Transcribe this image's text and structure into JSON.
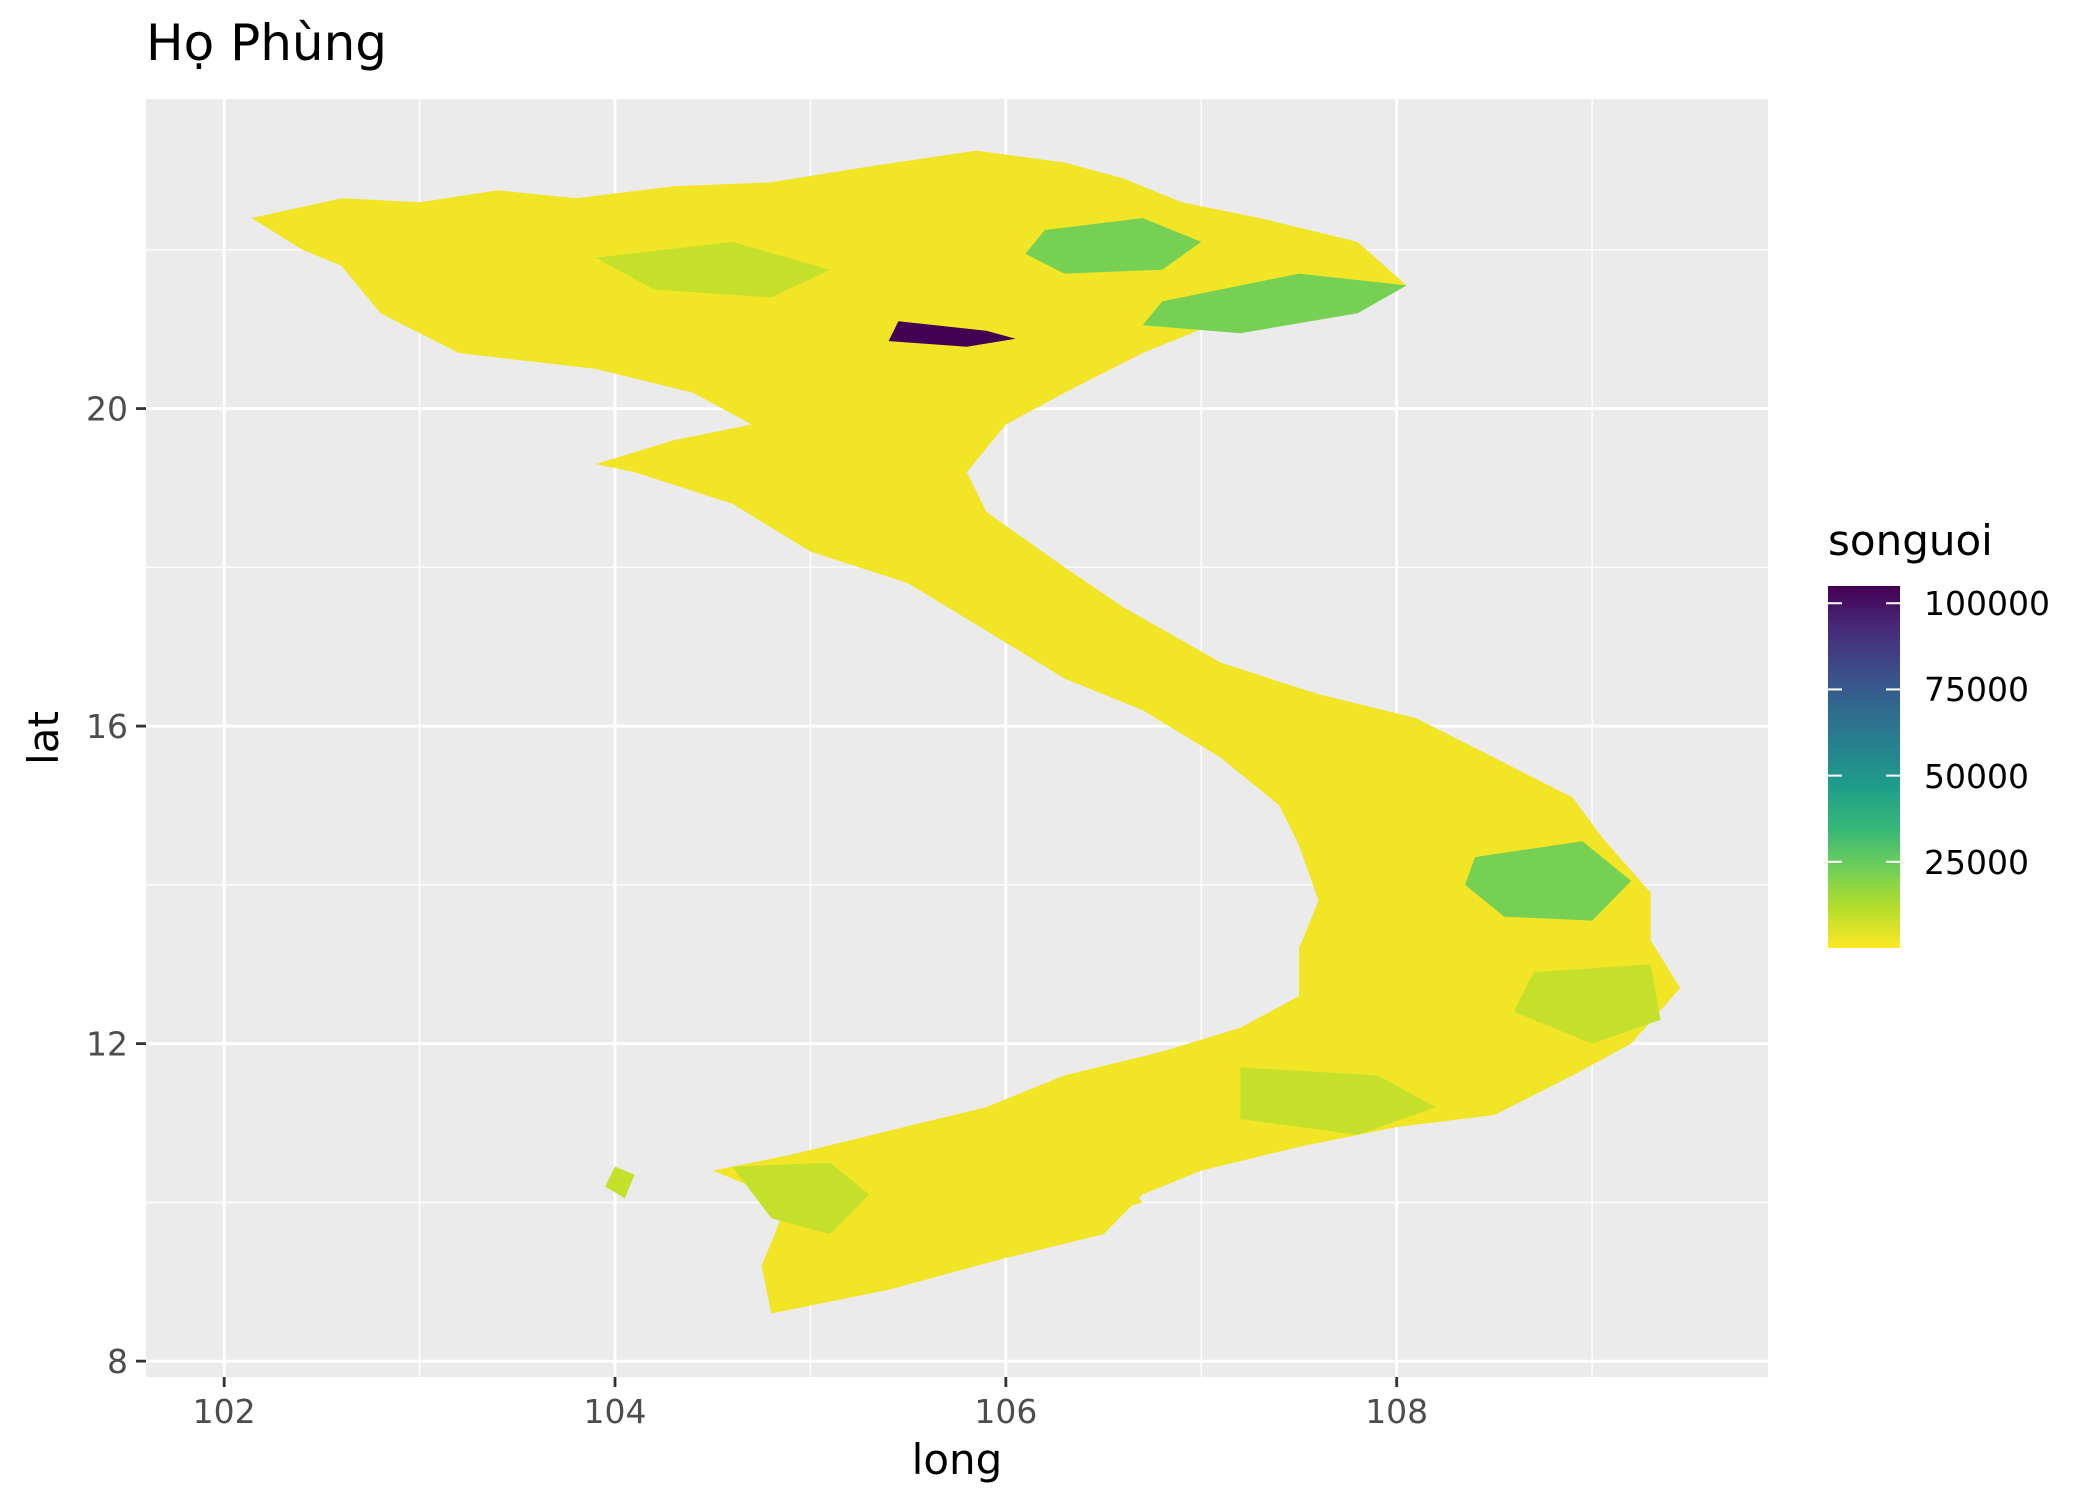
{
  "chart_data": {
    "type": "choropleth map",
    "title": "Họ Phùng",
    "xlabel": "long",
    "ylabel": "lat",
    "xlim": [
      101.6,
      109.9
    ],
    "ylim": [
      7.8,
      23.9
    ],
    "x_ticks": [
      "102",
      "104",
      "106",
      "108"
    ],
    "y_ticks": [
      "8",
      "12",
      "16",
      "20"
    ],
    "grid": true,
    "legend": {
      "title": "songuoi",
      "position": "right",
      "labels": [
        "100000",
        "75000",
        "50000",
        "25000"
      ],
      "values": [
        100000,
        75000,
        50000,
        25000
      ],
      "range": [
        0,
        105000
      ],
      "palette": [
        "#fde725",
        "#b5de2b",
        "#6ece58",
        "#35b779",
        "#1f9e89",
        "#26828e",
        "#31688e",
        "#3e4989",
        "#482878",
        "#440154"
      ]
    },
    "regions": [
      {
        "lon": 105.8,
        "lat": 21.0,
        "value": 105000
      },
      {
        "lon": 106.9,
        "lat": 21.8,
        "value": 22000
      },
      {
        "lon": 107.2,
        "lat": 21.1,
        "value": 22000
      },
      {
        "lon": 108.7,
        "lat": 13.9,
        "value": 22000
      },
      {
        "lon": 104.4,
        "lat": 21.7,
        "value": 9000
      },
      {
        "lon": 104.9,
        "lat": 10.3,
        "value": 9000
      },
      {
        "lon": 109.1,
        "lat": 12.6,
        "value": 9000
      },
      {
        "lon": 107.6,
        "lat": 11.3,
        "value": 9000
      },
      {
        "lon": 105.0,
        "lat": 22.6,
        "value": 2000
      },
      {
        "lon": 105.2,
        "lat": 19.0,
        "value": 2000
      },
      {
        "lon": 107.8,
        "lat": 15.6,
        "value": 2000
      },
      {
        "lon": 106.2,
        "lat": 10.2,
        "value": 2000
      }
    ]
  }
}
